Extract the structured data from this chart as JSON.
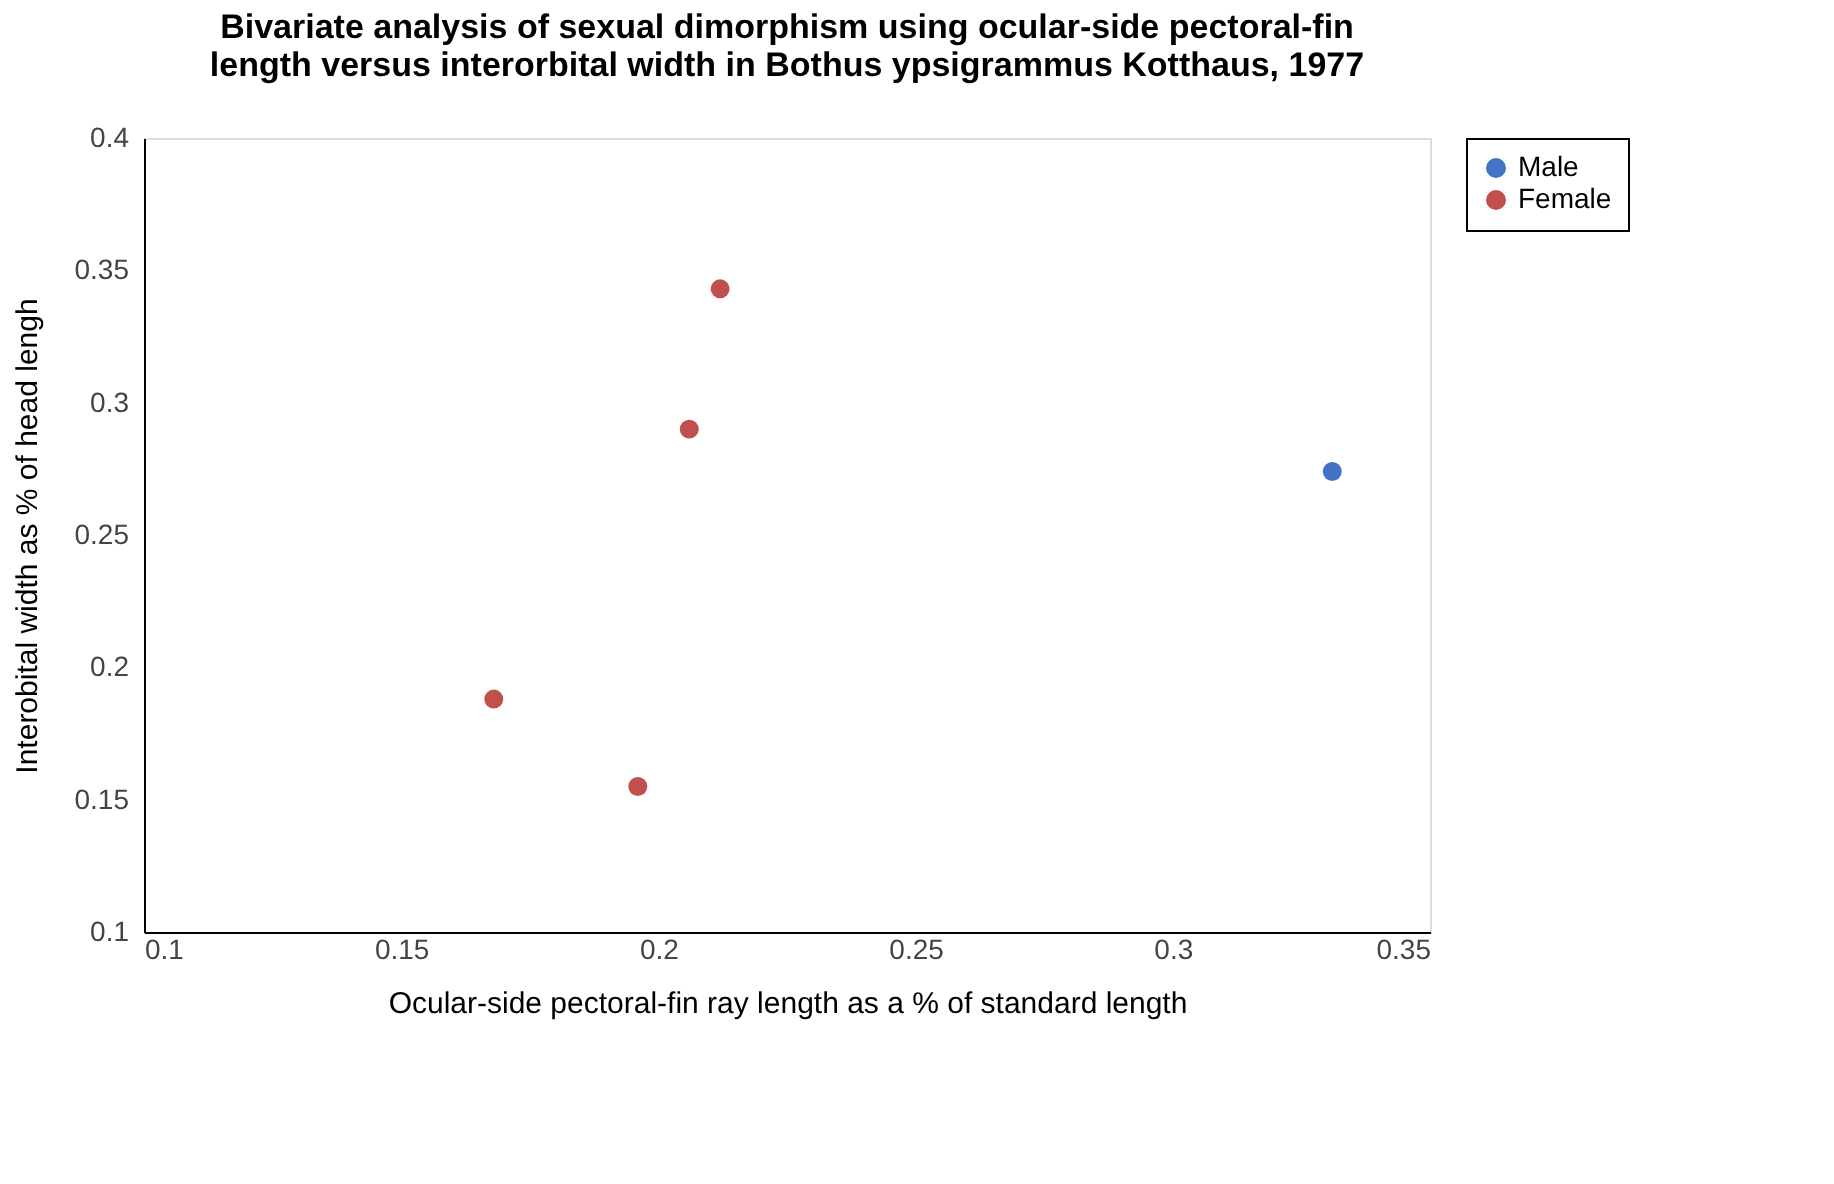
{
  "chart_data": {
    "type": "scatter",
    "title": [
      "Bivariate analysis of sexual dimorphism using ocular-side pectoral-fin",
      "length versus interorbital width in Bothus ypsigrammus Kotthaus, 1977"
    ],
    "xlabel": "Ocular-side pectoral-fin ray length as a % of standard length",
    "ylabel": "Interobital width as % of head lengh",
    "series": [
      {
        "name": "Male",
        "color": "#4472c4",
        "x": [
          0.331
        ],
        "values": [
          0.274
        ]
      },
      {
        "name": "Female",
        "color": "#c0504d",
        "x": [
          0.212,
          0.206,
          0.168,
          0.196
        ],
        "values": [
          0.343,
          0.29,
          0.188,
          0.155
        ]
      }
    ],
    "xlim": [
      0.1,
      0.35
    ],
    "xticks": [
      0.1,
      0.15,
      0.2,
      0.25,
      0.3,
      0.35
    ],
    "ylim": [
      0.1,
      0.4
    ],
    "yticks": [
      0.1,
      0.15,
      0.2,
      0.25,
      0.3,
      0.35,
      0.4
    ],
    "grid": false,
    "legend": "right",
    "marker": "circle"
  }
}
